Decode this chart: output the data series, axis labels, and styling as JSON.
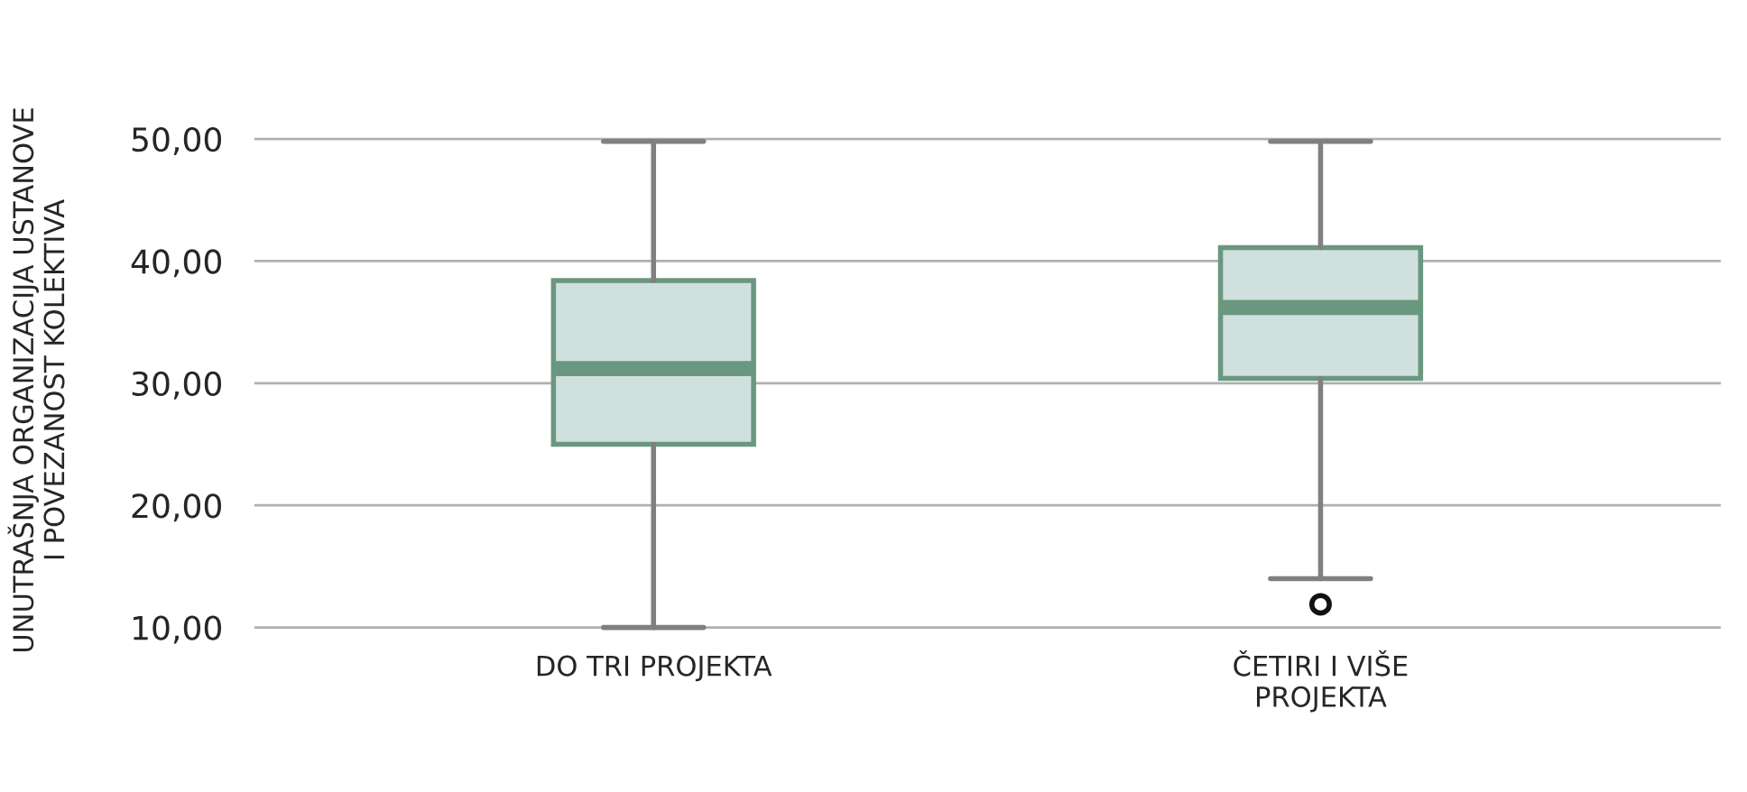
{
  "chart_data": {
    "type": "box",
    "ylabel": "UNUTRAŠNJA ORGANIZACIJA USTANOVE\nI POVEZANOST KOLEKTIVA",
    "categories": [
      "DO TRI PROJEKTA",
      "ČETIRI I VIŠE\nPROJEKTA"
    ],
    "boxes": [
      {
        "low": 10,
        "q1": 25.0,
        "median": 31.2,
        "q3": 38.4,
        "high": 49.8
      },
      {
        "low": 14.0,
        "q1": 30.4,
        "median": 36.2,
        "q3": 41.1,
        "high": 49.8,
        "outliers": [
          11.9
        ]
      }
    ],
    "color": "#cfe0df",
    "ylim": [
      9.5,
      51
    ],
    "yticks": [
      {
        "value": 10,
        "label": "10,00"
      },
      {
        "value": 20,
        "label": "20,00"
      },
      {
        "value": 30,
        "label": "30,00"
      },
      {
        "value": 40,
        "label": "40,00"
      },
      {
        "value": 50,
        "label": "50,00"
      }
    ],
    "grid": "y"
  }
}
